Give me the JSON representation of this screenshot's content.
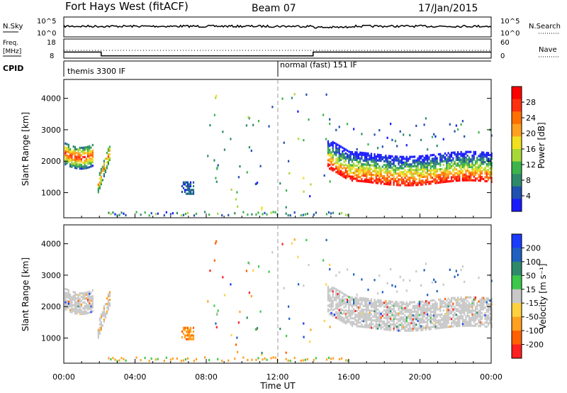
{
  "header": {
    "title": "Fort Hays West (fitACF)",
    "beam": "Beam 07",
    "date": "17/Jan/2015"
  },
  "sky_panel": {
    "left_label": "N.Sky",
    "left_ticks": [
      "10^5",
      "10^0"
    ],
    "right_ticks": [
      "10^5",
      "10^0"
    ],
    "right_label": "N.Search"
  },
  "freq_panel": {
    "left_label_1": "Freq.",
    "left_label_2": "[MHz]",
    "left_ticks": [
      "18",
      "8"
    ],
    "right_ticks": [
      "60",
      "0"
    ],
    "right_label": "Nave"
  },
  "cpid_panel": {
    "label": "CPID",
    "segments": [
      {
        "text": "themis 3300 IF",
        "start_hour": 0
      },
      {
        "text": "normal (fast) 151 IF",
        "start_hour": 12
      }
    ]
  },
  "power_panel": {
    "ylabel": "Slant Range [km]",
    "yticks": [
      "1000",
      "2000",
      "3000",
      "4000"
    ],
    "colorbar_label": "Power [dB]",
    "colorbar_ticks": [
      "4",
      "8",
      "12",
      "16",
      "20",
      "24",
      "28"
    ],
    "colors": [
      "#1a1aff",
      "#2050b0",
      "#2e8a6a",
      "#3cb44b",
      "#a8d838",
      "#f0e020",
      "#ffa020",
      "#ff7000",
      "#ff3010",
      "#ff0000"
    ]
  },
  "velocity_panel": {
    "ylabel": "Slant Range [km]",
    "yticks": [
      "1000",
      "2000",
      "3000",
      "4000"
    ],
    "colorbar_label": "Velocity [m s⁻¹]",
    "colorbar_ticks": [
      "200",
      "100",
      "50",
      "15",
      "-15",
      "-50",
      "-100",
      "-200"
    ],
    "colors": [
      "#1a3cff",
      "#2060c0",
      "#2e8a6a",
      "#3cc84b",
      "#c8c8c8",
      "#ffd040",
      "#ffa020",
      "#ff6000",
      "#ff2020"
    ]
  },
  "x_axis": {
    "ticks": [
      "00:00",
      "04:00",
      "08:00",
      "12:00",
      "16:00",
      "20:00",
      "00:00"
    ],
    "label": "Time UT"
  },
  "chart_data": [
    {
      "type": "line",
      "name_axis": "N.Sky",
      "x_range_hours": [
        0,
        24
      ],
      "scale": "log",
      "ylim": [
        1,
        100000
      ]
    },
    {
      "type": "line",
      "name_axis": "Freq. [MHz]",
      "ylim": [
        8,
        18
      ],
      "x": [
        0,
        2.1,
        2.1,
        14,
        14,
        24
      ],
      "values": [
        11.2,
        11.2,
        9.2,
        9.2,
        11.2,
        11.2
      ]
    },
    {
      "type": "heatmap",
      "name_axis": "Power [dB]",
      "xlim": [
        0,
        24
      ],
      "ylim": [
        200,
        4600
      ],
      "clim": [
        0,
        30
      ]
    },
    {
      "type": "heatmap",
      "name_axis": "Velocity [m s-1]",
      "xlim": [
        0,
        24
      ],
      "ylim": [
        200,
        4600
      ],
      "clim": [
        -200,
        200
      ]
    }
  ]
}
